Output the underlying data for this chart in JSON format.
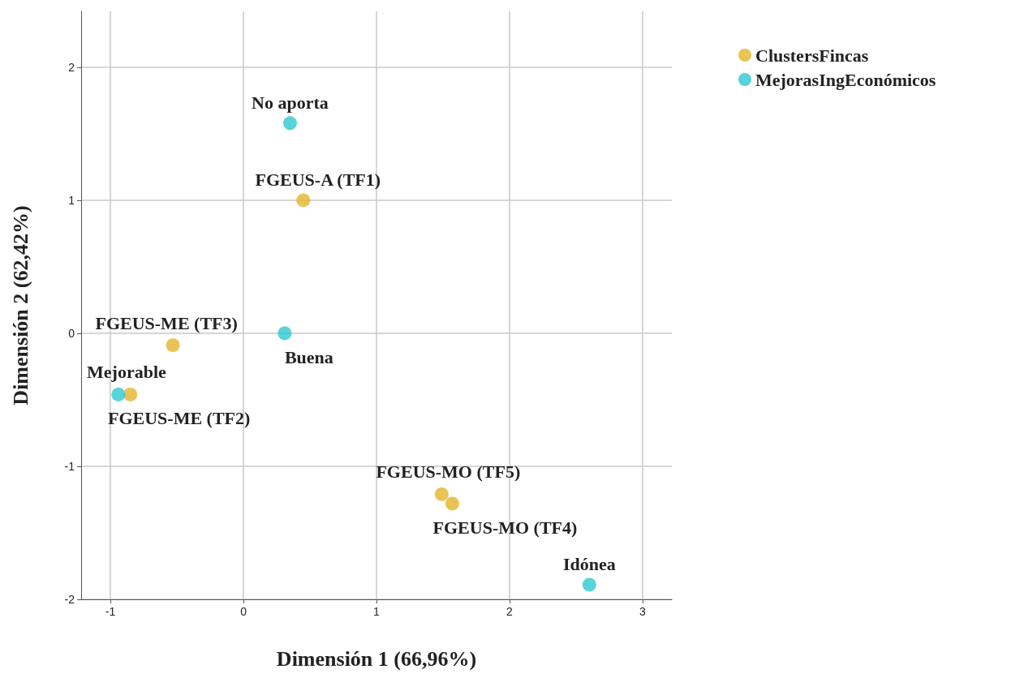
{
  "chart_data": {
    "type": "scatter",
    "xlabel": "Dimensión 1 (66,96%)",
    "ylabel": "Dimensión 2 (62,42%)",
    "xlim": [
      -1.22,
      3.22
    ],
    "xticks": [
      -1,
      0,
      1,
      2,
      3
    ],
    "ylim": [
      -2,
      2.42
    ],
    "yticks": [
      -2,
      -1,
      0,
      1,
      2
    ],
    "grid": true,
    "legend": "top right",
    "marker": "circle",
    "series": [
      {
        "name": "ClustersFincas",
        "color": "#e3b52a",
        "x": [
          0.45,
          -0.53,
          -0.85,
          1.49,
          1.57
        ],
        "values": [
          1.0,
          -0.09,
          -0.46,
          -1.21,
          -1.28
        ]
      },
      {
        "name": "MejorasIngEconómicos",
        "color": "#2cc9cf",
        "x": [
          0.35,
          0.31,
          -0.94,
          2.6
        ],
        "values": [
          1.58,
          0.0,
          -0.46,
          -1.89
        ]
      }
    ],
    "annotations": [
      {
        "text": "FGEUS-A (TF1)",
        "x": 0.45,
        "y": 1.0
      },
      {
        "text": "FGEUS-ME (TF3)",
        "x": -0.53,
        "y": -0.09
      },
      {
        "text": "FGEUS-ME (TF2)",
        "x": -0.85,
        "y": -0.46
      },
      {
        "text": "FGEUS-MO (TF5)",
        "x": 1.49,
        "y": -1.21
      },
      {
        "text": "FGEUS-MO (TF4)",
        "x": 1.57,
        "y": -1.28
      },
      {
        "text": "No aporta",
        "x": 0.35,
        "y": 1.58
      },
      {
        "text": "Buena",
        "x": 0.31,
        "y": 0.0
      },
      {
        "text": "Mejorable",
        "x": -0.94,
        "y": -0.46
      },
      {
        "text": "Idónea",
        "x": 2.6,
        "y": -1.89
      }
    ]
  }
}
